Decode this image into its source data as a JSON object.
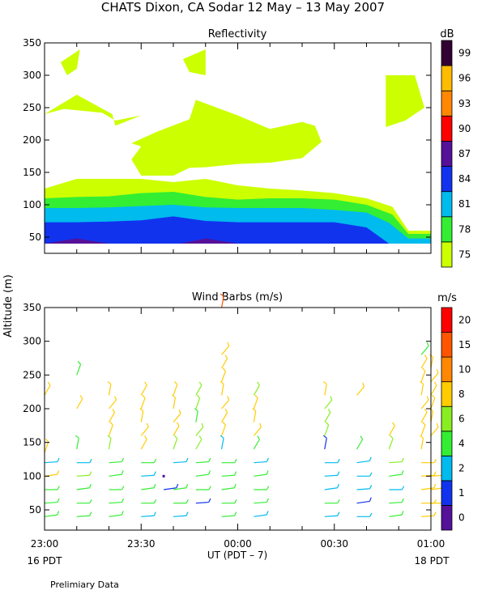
{
  "page": {
    "title": "CHATS Dixon, CA  Sodar  12 May – 13 May 2007",
    "footnote": "Prelimiary Data",
    "y_axis_label": "Altitude  (m)",
    "x_axis_label": "UT  (PDT – 7)",
    "date_left": "16 PDT",
    "date_right": "18 PDT"
  },
  "chart_data": [
    {
      "type": "heatmap",
      "title": "Reflectivity",
      "x_ticks": [
        "23:00",
        "23:30",
        "00:00",
        "00:30",
        "01:00"
      ],
      "x_range_minutes": [
        0,
        120
      ],
      "ylim": [
        25,
        350
      ],
      "y_ticks": [
        50,
        100,
        150,
        200,
        250,
        300,
        350
      ],
      "colorbar": {
        "unit": "dB",
        "labels": [
          "75",
          "78",
          "81",
          "84",
          "87",
          "90",
          "93",
          "96",
          "99"
        ],
        "colors": [
          "#ccff00",
          "#33ee33",
          "#00bbee",
          "#1133ee",
          "#551199",
          "#ff0000",
          "#ff8800",
          "#ffbb00",
          "#330033"
        ]
      },
      "contours": [
        {
          "level": "75",
          "color": "#ccff00",
          "points": [
            [
              0,
              40
            ],
            [
              0,
              125
            ],
            [
              10,
              140
            ],
            [
              30,
              140
            ],
            [
              40,
              135
            ],
            [
              50,
              140
            ],
            [
              60,
              130
            ],
            [
              70,
              125
            ],
            [
              80,
              122
            ],
            [
              90,
              118
            ],
            [
              100,
              110
            ],
            [
              108,
              97
            ],
            [
              113,
              60
            ],
            [
              120,
              60
            ],
            [
              120,
              40
            ]
          ]
        },
        {
          "level": "75",
          "color": "#ccff00",
          "points": [
            [
              27,
              195
            ],
            [
              35,
              213
            ],
            [
              45,
              232
            ],
            [
              47,
              262
            ],
            [
              60,
              238
            ],
            [
              70,
              217
            ],
            [
              80,
              228
            ],
            [
              84,
              222
            ],
            [
              86,
              197
            ],
            [
              80,
              172
            ],
            [
              70,
              165
            ],
            [
              60,
              163
            ],
            [
              50,
              158
            ],
            [
              45,
              157
            ],
            [
              40,
              145
            ],
            [
              30,
              145
            ],
            [
              27,
              170
            ],
            [
              30,
              190
            ]
          ]
        },
        {
          "level": "75",
          "color": "#ccff00",
          "points": [
            [
              0,
              240
            ],
            [
              10,
              270
            ],
            [
              21,
              240
            ],
            [
              22,
              222
            ],
            [
              30,
              238
            ],
            [
              22,
              230
            ],
            [
              18,
              242
            ],
            [
              6,
              248
            ]
          ]
        },
        {
          "level": "75",
          "color": "#ccff00",
          "points": [
            [
              5,
              320
            ],
            [
              11,
              340
            ],
            [
              10,
              310
            ],
            [
              7,
              300
            ]
          ]
        },
        {
          "level": "75",
          "color": "#ccff00",
          "points": [
            [
              43,
              325
            ],
            [
              50,
              340
            ],
            [
              50,
              300
            ],
            [
              45,
              305
            ]
          ]
        },
        {
          "level": "75",
          "color": "#ccff00",
          "points": [
            [
              106,
              300
            ],
            [
              115,
              300
            ],
            [
              118,
              250
            ],
            [
              112,
              230
            ],
            [
              106,
              220
            ],
            [
              106,
              260
            ]
          ]
        },
        {
          "level": "78",
          "color": "#33ee33",
          "points": [
            [
              0,
              40
            ],
            [
              0,
              110
            ],
            [
              10,
              112
            ],
            [
              20,
              113
            ],
            [
              30,
              118
            ],
            [
              40,
              120
            ],
            [
              50,
              112
            ],
            [
              60,
              108
            ],
            [
              70,
              110
            ],
            [
              80,
              110
            ],
            [
              90,
              108
            ],
            [
              100,
              100
            ],
            [
              108,
              85
            ],
            [
              113,
              55
            ],
            [
              120,
              55
            ],
            [
              120,
              40
            ]
          ]
        },
        {
          "level": "81",
          "color": "#00bbee",
          "points": [
            [
              0,
              40
            ],
            [
              0,
              95
            ],
            [
              10,
              95
            ],
            [
              20,
              96
            ],
            [
              30,
              98
            ],
            [
              40,
              100
            ],
            [
              50,
              96
            ],
            [
              60,
              95
            ],
            [
              70,
              95
            ],
            [
              80,
              95
            ],
            [
              90,
              92
            ],
            [
              100,
              88
            ],
            [
              107,
              72
            ],
            [
              113,
              48
            ],
            [
              120,
              48
            ],
            [
              120,
              40
            ]
          ]
        },
        {
          "level": "84",
          "color": "#1133ee",
          "points": [
            [
              0,
              40
            ],
            [
              0,
              73
            ],
            [
              10,
              73
            ],
            [
              20,
              74
            ],
            [
              30,
              76
            ],
            [
              40,
              82
            ],
            [
              50,
              75
            ],
            [
              60,
              73
            ],
            [
              70,
              73
            ],
            [
              80,
              73
            ],
            [
              90,
              73
            ],
            [
              100,
              65
            ],
            [
              107,
              40
            ]
          ]
        },
        {
          "level": "87",
          "color": "#551199",
          "points": [
            [
              0,
              40
            ],
            [
              10,
              48
            ],
            [
              20,
              40
            ]
          ]
        },
        {
          "level": "87",
          "color": "#551199",
          "points": [
            [
              42,
              40
            ],
            [
              50,
              48
            ],
            [
              60,
              40
            ]
          ]
        }
      ]
    },
    {
      "type": "scatter",
      "title": "Wind Barbs (m/s)",
      "x_ticks": [
        "23:00",
        "23:30",
        "00:00",
        "00:30",
        "01:00"
      ],
      "x_range_minutes": [
        0,
        120
      ],
      "ylim": [
        20,
        350
      ],
      "y_ticks": [
        50,
        100,
        150,
        200,
        250,
        300,
        350
      ],
      "colorbar": {
        "unit": "m/s",
        "labels": [
          "0",
          "1",
          "2",
          "4",
          "6",
          "8",
          "10",
          "15",
          "20"
        ],
        "colors": [
          "#551199",
          "#1133ee",
          "#00bbee",
          "#33ee33",
          "#88ee22",
          "#ffcc00",
          "#ff8800",
          "#ff5500",
          "#ff0000"
        ]
      },
      "barbs": [
        [
          0,
          40,
          4
        ],
        [
          0,
          60,
          4
        ],
        [
          0,
          80,
          4
        ],
        [
          0,
          100,
          8
        ],
        [
          0,
          120,
          2
        ],
        [
          0,
          135,
          8
        ],
        [
          0,
          220,
          8
        ],
        [
          10,
          40,
          4
        ],
        [
          10,
          60,
          4
        ],
        [
          10,
          80,
          4
        ],
        [
          10,
          100,
          6
        ],
        [
          10,
          120,
          2
        ],
        [
          10,
          140,
          4
        ],
        [
          10,
          250,
          4
        ],
        [
          10,
          200,
          8
        ],
        [
          20,
          40,
          4
        ],
        [
          20,
          60,
          4
        ],
        [
          20,
          80,
          4
        ],
        [
          20,
          100,
          4
        ],
        [
          20,
          120,
          4
        ],
        [
          20,
          140,
          6
        ],
        [
          20,
          160,
          8
        ],
        [
          20,
          180,
          8
        ],
        [
          20,
          200,
          8
        ],
        [
          20,
          220,
          8
        ],
        [
          30,
          40,
          2
        ],
        [
          30,
          60,
          4
        ],
        [
          30,
          80,
          4
        ],
        [
          30,
          100,
          2
        ],
        [
          30,
          120,
          4
        ],
        [
          30,
          140,
          8
        ],
        [
          30,
          160,
          8
        ],
        [
          30,
          180,
          8
        ],
        [
          30,
          200,
          8
        ],
        [
          30,
          220,
          8
        ],
        [
          37,
          100,
          0
        ],
        [
          37,
          80,
          1
        ],
        [
          40,
          40,
          2
        ],
        [
          40,
          60,
          4
        ],
        [
          40,
          80,
          4
        ],
        [
          40,
          120,
          2
        ],
        [
          40,
          140,
          6
        ],
        [
          40,
          160,
          8
        ],
        [
          40,
          180,
          8
        ],
        [
          40,
          200,
          8
        ],
        [
          40,
          220,
          8
        ],
        [
          47,
          60,
          1
        ],
        [
          47,
          80,
          4
        ],
        [
          47,
          100,
          4
        ],
        [
          47,
          120,
          4
        ],
        [
          47,
          140,
          6
        ],
        [
          47,
          160,
          6
        ],
        [
          47,
          180,
          4
        ],
        [
          47,
          200,
          6
        ],
        [
          47,
          220,
          6
        ],
        [
          55,
          40,
          4
        ],
        [
          55,
          60,
          4
        ],
        [
          55,
          80,
          4
        ],
        [
          55,
          100,
          4
        ],
        [
          55,
          120,
          4
        ],
        [
          55,
          140,
          2
        ],
        [
          55,
          160,
          8
        ],
        [
          55,
          180,
          8
        ],
        [
          55,
          200,
          8
        ],
        [
          55,
          220,
          8
        ],
        [
          55,
          240,
          8
        ],
        [
          55,
          260,
          8
        ],
        [
          55,
          280,
          8
        ],
        [
          55,
          350,
          15
        ],
        [
          65,
          40,
          2
        ],
        [
          65,
          60,
          4
        ],
        [
          65,
          80,
          4
        ],
        [
          65,
          100,
          4
        ],
        [
          65,
          120,
          2
        ],
        [
          65,
          140,
          4
        ],
        [
          65,
          160,
          8
        ],
        [
          65,
          180,
          8
        ],
        [
          65,
          200,
          8
        ],
        [
          65,
          220,
          6
        ],
        [
          87,
          40,
          2
        ],
        [
          87,
          60,
          4
        ],
        [
          87,
          80,
          2
        ],
        [
          87,
          100,
          2
        ],
        [
          87,
          120,
          2
        ],
        [
          87,
          140,
          1
        ],
        [
          87,
          160,
          6
        ],
        [
          87,
          180,
          6
        ],
        [
          87,
          200,
          6
        ],
        [
          87,
          220,
          8
        ],
        [
          97,
          40,
          2
        ],
        [
          97,
          60,
          1
        ],
        [
          97,
          80,
          2
        ],
        [
          97,
          100,
          2
        ],
        [
          97,
          120,
          2
        ],
        [
          97,
          140,
          4
        ],
        [
          97,
          220,
          8
        ],
        [
          107,
          40,
          4
        ],
        [
          107,
          60,
          4
        ],
        [
          107,
          80,
          2
        ],
        [
          107,
          100,
          4
        ],
        [
          107,
          120,
          6
        ],
        [
          107,
          140,
          6
        ],
        [
          107,
          160,
          8
        ],
        [
          117,
          40,
          8
        ],
        [
          117,
          60,
          8
        ],
        [
          117,
          80,
          8
        ],
        [
          117,
          100,
          8
        ],
        [
          117,
          120,
          8
        ],
        [
          117,
          140,
          8
        ],
        [
          117,
          160,
          8
        ],
        [
          117,
          180,
          8
        ],
        [
          117,
          200,
          8
        ],
        [
          117,
          220,
          8
        ],
        [
          117,
          240,
          8
        ],
        [
          117,
          260,
          8
        ],
        [
          117,
          280,
          4
        ],
        [
          120,
          60,
          8
        ],
        [
          120,
          80,
          8
        ],
        [
          120,
          100,
          8
        ],
        [
          120,
          160,
          8
        ],
        [
          120,
          180,
          8
        ],
        [
          120,
          200,
          8
        ],
        [
          120,
          220,
          8
        ],
        [
          120,
          240,
          8
        ],
        [
          120,
          260,
          8
        ]
      ]
    }
  ]
}
